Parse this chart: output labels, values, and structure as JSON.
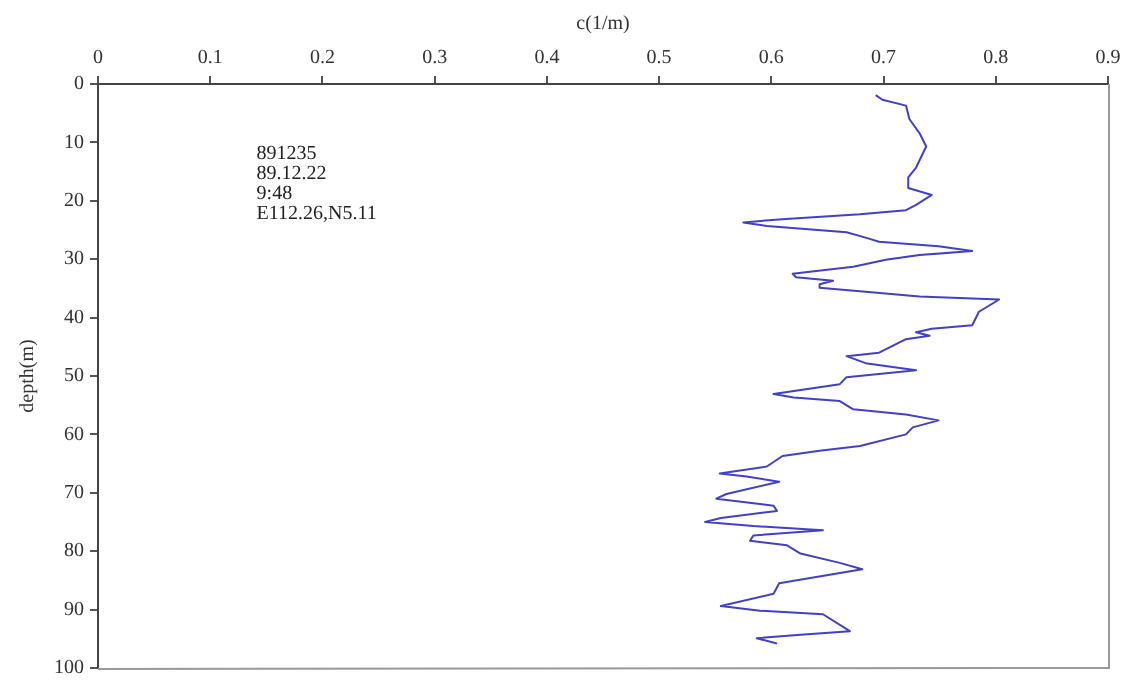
{
  "chart_data": {
    "type": "line",
    "xlabel": "c(1/m)",
    "ylabel": "depth(m)",
    "annotations": [
      "891235",
      "89.12.22",
      "9:48",
      "E112.26,N5.11"
    ],
    "xlim": [
      0,
      0.9
    ],
    "xticks": [
      0,
      0.1,
      0.2,
      0.3,
      0.4,
      0.5,
      0.6,
      0.7,
      0.8,
      0.9
    ],
    "ylim": [
      100,
      0
    ],
    "yticks": [
      0,
      10,
      20,
      30,
      40,
      50,
      60,
      70,
      80,
      90,
      100
    ],
    "grid": false,
    "legend": false,
    "marker": "none",
    "line_style": "solid",
    "series": [
      {
        "color": "#4040c8",
        "x": [
          0.693,
          0.699,
          0.72,
          0.723,
          0.732,
          0.738,
          0.729,
          0.722,
          0.722,
          0.743,
          0.729,
          0.72,
          0.679,
          0.613,
          0.575,
          0.596,
          0.667,
          0.684,
          0.696,
          0.749,
          0.779,
          0.732,
          0.702,
          0.673,
          0.619,
          0.622,
          0.655,
          0.643,
          0.643,
          0.679,
          0.732,
          0.803,
          0.785,
          0.779,
          0.743,
          0.729,
          0.741,
          0.72,
          0.696,
          0.667,
          0.684,
          0.729,
          0.667,
          0.661,
          0.602,
          0.62,
          0.661,
          0.673,
          0.72,
          0.749,
          0.726,
          0.72,
          0.679,
          0.643,
          0.61,
          0.596,
          0.554,
          0.578,
          0.607,
          0.56,
          0.551,
          0.602,
          0.605,
          0.555,
          0.541,
          0.584,
          0.646,
          0.584,
          0.581,
          0.614,
          0.626,
          0.661,
          0.681,
          0.607,
          0.602,
          0.555,
          0.59,
          0.646,
          0.67,
          0.626,
          0.587,
          0.605
        ],
        "values": [
          1.9,
          2.7,
          3.7,
          6.0,
          8.4,
          10.7,
          14.3,
          16.0,
          17.8,
          19.0,
          20.7,
          21.6,
          22.3,
          23.1,
          23.7,
          24.3,
          25.4,
          26.3,
          27.0,
          27.8,
          28.6,
          29.3,
          30.1,
          31.3,
          32.5,
          33.1,
          33.7,
          34.3,
          34.9,
          35.5,
          36.4,
          36.9,
          39.0,
          41.3,
          41.9,
          42.5,
          43.1,
          43.7,
          46.0,
          46.6,
          47.8,
          49.0,
          50.2,
          51.4,
          53.1,
          53.7,
          54.3,
          55.7,
          56.6,
          57.6,
          58.8,
          60.0,
          62.0,
          62.8,
          63.7,
          65.5,
          66.7,
          67.2,
          68.1,
          70.2,
          71.0,
          72.2,
          73.1,
          74.3,
          75.0,
          75.7,
          76.4,
          77.3,
          78.2,
          79.0,
          80.4,
          82.0,
          83.1,
          85.5,
          87.3,
          89.4,
          90.2,
          90.8,
          93.7,
          94.3,
          94.9,
          95.8
        ]
      }
    ]
  }
}
